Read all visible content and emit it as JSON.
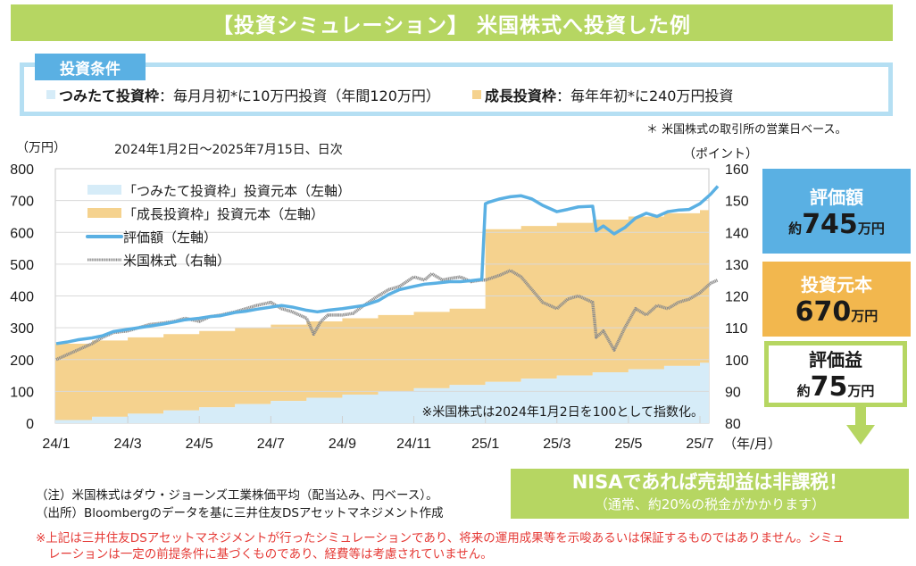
{
  "header": {
    "title": "【投資シミュレーション】 米国株式へ投資した例"
  },
  "conditions": {
    "tag": "投資条件",
    "tsumitate_label": "つみたて投資枠",
    "tsumitate_text": "：毎月月初*に10万円投資（年間120万円）",
    "growth_label": "成長投資枠",
    "growth_text": "：毎年年初*に240万円投資",
    "tsumitate_color": "#d6ecf8",
    "growth_color": "#f5d28e"
  },
  "footnote_star": "＊ 米国株式の取引所の営業日ベース。",
  "summary": {
    "valuation_label": "評価額",
    "valuation_prefix": "約",
    "valuation_value": "745",
    "valuation_unit": "万円",
    "principal_label": "投資元本",
    "principal_value": "670",
    "principal_unit": "万円",
    "gain_label": "評価益",
    "gain_prefix": "約",
    "gain_value": "75",
    "gain_unit": "万円"
  },
  "nisa": {
    "line1": "NISAであれば売却益は非課税！",
    "line2": "（通常、約20%の税金がかかります）"
  },
  "notes": {
    "note1": "（注）米国株式はダウ・ジョーンズ工業株価平均（配当込み、円ベース）。",
    "note2": "（出所）Bloombergのデータを基に三井住友DSアセットマネジメント作成",
    "disclaimer1": "※上記は三井住友DSアセットマネジメントが行ったシミュレーションであり、将来の運用成果等を示唆あるいは保証するものではありません。シミュ",
    "disclaimer2": "レーションは一定の前提条件に基づくものであり、経費等は考慮されていません。"
  },
  "chart_data": {
    "type": "area",
    "title": "2024年1月2日～2025年7月15日、日次",
    "ylabel": "（万円）",
    "y2label": "（ポイント）",
    "xlabel": "（年/月）",
    "ylim": [
      0,
      800
    ],
    "yticks": [
      0,
      100,
      200,
      300,
      400,
      500,
      600,
      700,
      800
    ],
    "y2lim": [
      80,
      160
    ],
    "y2ticks": [
      80,
      90,
      100,
      110,
      120,
      130,
      140,
      150,
      160
    ],
    "xlim": [
      0,
      18.5
    ],
    "xticks": [
      {
        "x": 0,
        "label": "24/1"
      },
      {
        "x": 2,
        "label": "24/3"
      },
      {
        "x": 4,
        "label": "24/5"
      },
      {
        "x": 6,
        "label": "24/7"
      },
      {
        "x": 8,
        "label": "24/9"
      },
      {
        "x": 10,
        "label": "24/11"
      },
      {
        "x": 12,
        "label": "25/1"
      },
      {
        "x": 14,
        "label": "25/3"
      },
      {
        "x": 16,
        "label": "25/5"
      },
      {
        "x": 18,
        "label": "25/7"
      }
    ],
    "grid": true,
    "annotation": "※米国株式は2024年1月2日を100として指数化。",
    "legend_position": "top-left",
    "series": [
      {
        "name": "「つみたて投資枠」投資元本（左軸）",
        "kind": "step-area",
        "axis": "left",
        "color": "#d6ecf8",
        "x": [
          0,
          1,
          2,
          3,
          4,
          5,
          6,
          7,
          8,
          9,
          10,
          11,
          12,
          13,
          14,
          15,
          16,
          17,
          18,
          18.5
        ],
        "values": [
          10,
          20,
          30,
          40,
          50,
          60,
          70,
          80,
          90,
          100,
          110,
          120,
          130,
          140,
          150,
          160,
          170,
          180,
          190,
          190
        ]
      },
      {
        "name": "「成長投資枠」投資元本（左軸）",
        "kind": "step-area",
        "axis": "left",
        "color": "#f5d28e",
        "x": [
          0,
          1,
          2,
          3,
          4,
          5,
          6,
          7,
          8,
          9,
          10,
          11,
          12,
          13,
          14,
          15,
          16,
          17,
          18,
          18.5
        ],
        "values": [
          240,
          240,
          240,
          240,
          240,
          240,
          240,
          240,
          240,
          240,
          240,
          240,
          480,
          480,
          480,
          480,
          480,
          480,
          480,
          480
        ]
      },
      {
        "name": "評価額（左軸）",
        "kind": "line",
        "axis": "left",
        "color": "#5ab0e3",
        "x": [
          0,
          0.3,
          0.6,
          1.0,
          1.3,
          1.6,
          2.0,
          2.3,
          2.6,
          3.0,
          3.3,
          3.6,
          4.0,
          4.3,
          4.6,
          5.0,
          5.3,
          5.6,
          6.0,
          6.3,
          6.6,
          7.0,
          7.3,
          7.6,
          8.0,
          8.3,
          8.6,
          9.0,
          9.3,
          9.6,
          10.0,
          10.3,
          10.6,
          11.0,
          11.3,
          11.6,
          11.9,
          12.0,
          12.1,
          12.4,
          12.7,
          13.0,
          13.3,
          13.6,
          14.0,
          14.3,
          14.6,
          15.0,
          15.1,
          15.3,
          15.6,
          15.9,
          16.2,
          16.5,
          16.8,
          17.1,
          17.4,
          17.7,
          18.0,
          18.3,
          18.5
        ],
        "values": [
          250,
          255,
          262,
          268,
          275,
          288,
          295,
          300,
          305,
          312,
          318,
          325,
          330,
          335,
          338,
          348,
          352,
          358,
          365,
          370,
          365,
          355,
          350,
          355,
          360,
          365,
          370,
          385,
          405,
          420,
          430,
          437,
          440,
          445,
          445,
          448,
          452,
          690,
          695,
          705,
          712,
          715,
          705,
          685,
          665,
          672,
          680,
          682,
          605,
          620,
          595,
          615,
          645,
          660,
          650,
          665,
          670,
          672,
          690,
          720,
          745
        ]
      },
      {
        "name": "米国株式（右軸）",
        "kind": "line",
        "axis": "right",
        "color": "#8c8c8c",
        "x": [
          0,
          0.3,
          0.6,
          1.0,
          1.3,
          1.6,
          2.0,
          2.3,
          2.6,
          3.0,
          3.3,
          3.6,
          4.0,
          4.3,
          4.6,
          5.0,
          5.3,
          5.6,
          6.0,
          6.3,
          6.6,
          7.0,
          7.2,
          7.4,
          7.6,
          8.0,
          8.3,
          8.6,
          9.0,
          9.3,
          9.6,
          10.0,
          10.3,
          10.5,
          10.8,
          11.0,
          11.3,
          11.6,
          11.9,
          12.0,
          12.4,
          12.7,
          13.0,
          13.3,
          13.6,
          14.0,
          14.3,
          14.6,
          15.0,
          15.1,
          15.3,
          15.6,
          15.9,
          16.2,
          16.5,
          16.8,
          17.1,
          17.4,
          17.7,
          18.0,
          18.3,
          18.5
        ],
        "values": [
          100,
          101.5,
          103,
          105,
          107,
          108.5,
          109,
          110,
          111,
          111.5,
          112,
          113,
          112,
          113.5,
          114,
          115,
          116,
          117,
          118,
          116,
          115,
          113,
          108,
          112,
          114,
          114,
          114.5,
          117,
          120,
          122,
          123,
          126,
          125,
          127,
          125,
          125.5,
          126,
          124.5,
          125,
          125,
          126.5,
          128,
          126,
          122,
          118,
          116,
          119,
          120,
          118,
          107,
          109,
          103,
          110,
          116,
          114,
          117,
          116,
          118,
          119,
          121,
          124,
          125
        ]
      }
    ]
  }
}
